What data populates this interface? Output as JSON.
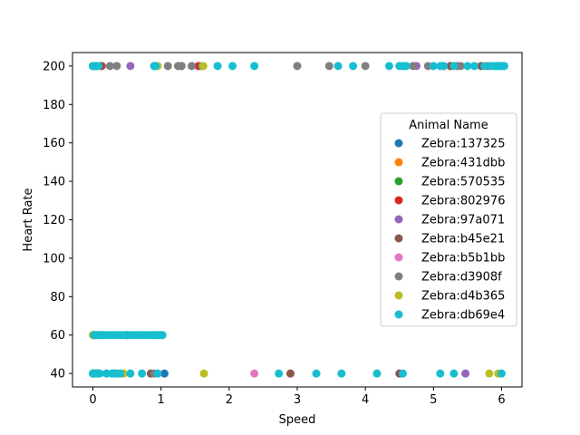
{
  "chart_data": {
    "type": "scatter",
    "xlabel": "Speed",
    "ylabel": "Heart Rate",
    "xlim": [
      -0.3,
      6.3
    ],
    "ylim": [
      33,
      207
    ],
    "xticks": [
      0,
      1,
      2,
      3,
      4,
      5,
      6
    ],
    "yticks": [
      40,
      60,
      80,
      100,
      120,
      140,
      160,
      180,
      200
    ],
    "grid": false,
    "legend": {
      "title": "Animal Name",
      "placement": "right"
    },
    "series": [
      {
        "name": "Zebra:137325",
        "color": "#1f77b4",
        "points": [
          [
            0.0,
            200
          ],
          [
            0.05,
            200
          ],
          [
            0.0,
            60
          ],
          [
            0.05,
            60
          ],
          [
            0.0,
            40
          ],
          [
            1.05,
            40
          ],
          [
            0.05,
            40
          ]
        ]
      },
      {
        "name": "Zebra:431dbb",
        "color": "#ff7f0e",
        "points": [
          [
            0.0,
            200
          ],
          [
            0.02,
            60
          ],
          [
            0.02,
            40
          ]
        ]
      },
      {
        "name": "Zebra:570535",
        "color": "#2ca02c",
        "points": [
          [
            0.0,
            200
          ],
          [
            0.01,
            60
          ],
          [
            0.01,
            40
          ]
        ]
      },
      {
        "name": "Zebra:802976",
        "color": "#d62728",
        "points": [
          [
            0.13,
            200
          ],
          [
            1.55,
            200
          ],
          [
            0.1,
            60
          ],
          [
            0.08,
            40
          ]
        ]
      },
      {
        "name": "Zebra:97a071",
        "color": "#9467bd",
        "points": [
          [
            0.55,
            200
          ],
          [
            4.75,
            200
          ],
          [
            5.25,
            200
          ],
          [
            5.47,
            40
          ],
          [
            0.3,
            40
          ]
        ]
      },
      {
        "name": "Zebra:b45e21",
        "color": "#8c564b",
        "points": [
          [
            0.12,
            200
          ],
          [
            1.3,
            200
          ],
          [
            5.15,
            200
          ],
          [
            5.25,
            200
          ],
          [
            5.7,
            200
          ],
          [
            2.9,
            40
          ],
          [
            0.85,
            40
          ],
          [
            4.5,
            40
          ],
          [
            0.5,
            60
          ]
        ]
      },
      {
        "name": "Zebra:b5b1bb",
        "color": "#e377c2",
        "points": [
          [
            2.37,
            40
          ],
          [
            0.02,
            200
          ],
          [
            0.03,
            60
          ]
        ]
      },
      {
        "name": "Zebra:d3908f",
        "color": "#7f7f7f",
        "points": [
          [
            0.25,
            200
          ],
          [
            0.35,
            200
          ],
          [
            0.9,
            200
          ],
          [
            1.1,
            200
          ],
          [
            1.25,
            200
          ],
          [
            1.3,
            200
          ],
          [
            1.45,
            200
          ],
          [
            1.6,
            200
          ],
          [
            3.0,
            200
          ],
          [
            3.47,
            200
          ],
          [
            4.0,
            200
          ],
          [
            4.7,
            200
          ],
          [
            4.92,
            200
          ],
          [
            5.35,
            200
          ],
          [
            5.4,
            200
          ],
          [
            5.8,
            200
          ],
          [
            0.9,
            40
          ],
          [
            0.2,
            40
          ]
        ]
      },
      {
        "name": "Zebra:d4b365",
        "color": "#bcbd22",
        "points": [
          [
            0.0,
            200
          ],
          [
            0.95,
            200
          ],
          [
            1.62,
            200
          ],
          [
            0.0,
            60
          ],
          [
            0.02,
            60
          ],
          [
            0.05,
            60
          ],
          [
            0.1,
            60
          ],
          [
            0.5,
            60
          ],
          [
            0.9,
            60
          ],
          [
            0.45,
            40
          ],
          [
            1.63,
            40
          ],
          [
            5.82,
            40
          ],
          [
            5.95,
            40
          ],
          [
            0.0,
            40
          ]
        ]
      },
      {
        "name": "Zebra:db69e4",
        "color": "#17becf",
        "points": [
          [
            0.0,
            200
          ],
          [
            0.02,
            200
          ],
          [
            0.04,
            200
          ],
          [
            0.06,
            200
          ],
          [
            0.08,
            200
          ],
          [
            0.9,
            200
          ],
          [
            0.92,
            200
          ],
          [
            1.83,
            200
          ],
          [
            2.05,
            200
          ],
          [
            2.37,
            200
          ],
          [
            3.6,
            200
          ],
          [
            3.82,
            200
          ],
          [
            4.35,
            200
          ],
          [
            4.5,
            200
          ],
          [
            4.55,
            200
          ],
          [
            4.58,
            200
          ],
          [
            4.6,
            200
          ],
          [
            5.0,
            200
          ],
          [
            5.1,
            200
          ],
          [
            5.15,
            200
          ],
          [
            5.3,
            200
          ],
          [
            5.5,
            200
          ],
          [
            5.6,
            200
          ],
          [
            5.75,
            200
          ],
          [
            5.85,
            200
          ],
          [
            5.9,
            200
          ],
          [
            5.92,
            200
          ],
          [
            5.95,
            200
          ],
          [
            5.97,
            200
          ],
          [
            6.0,
            200
          ],
          [
            6.02,
            200
          ],
          [
            6.04,
            200
          ],
          [
            0.02,
            60
          ],
          [
            0.05,
            60
          ],
          [
            0.08,
            60
          ],
          [
            0.12,
            60
          ],
          [
            0.15,
            60
          ],
          [
            0.2,
            60
          ],
          [
            0.25,
            60
          ],
          [
            0.3,
            60
          ],
          [
            0.35,
            60
          ],
          [
            0.4,
            60
          ],
          [
            0.45,
            60
          ],
          [
            0.5,
            60
          ],
          [
            0.55,
            60
          ],
          [
            0.6,
            60
          ],
          [
            0.65,
            60
          ],
          [
            0.7,
            60
          ],
          [
            0.75,
            60
          ],
          [
            0.8,
            60
          ],
          [
            0.85,
            60
          ],
          [
            0.88,
            60
          ],
          [
            0.9,
            60
          ],
          [
            0.92,
            60
          ],
          [
            0.95,
            60
          ],
          [
            0.97,
            60
          ],
          [
            1.0,
            60
          ],
          [
            1.02,
            60
          ],
          [
            0.0,
            40
          ],
          [
            0.02,
            40
          ],
          [
            0.04,
            40
          ],
          [
            0.06,
            40
          ],
          [
            0.08,
            40
          ],
          [
            0.1,
            40
          ],
          [
            0.2,
            40
          ],
          [
            0.28,
            40
          ],
          [
            0.32,
            40
          ],
          [
            0.36,
            40
          ],
          [
            0.4,
            40
          ],
          [
            0.55,
            40
          ],
          [
            0.72,
            40
          ],
          [
            0.95,
            40
          ],
          [
            2.73,
            40
          ],
          [
            3.28,
            40
          ],
          [
            3.65,
            40
          ],
          [
            4.17,
            40
          ],
          [
            4.55,
            40
          ],
          [
            5.1,
            40
          ],
          [
            5.3,
            40
          ],
          [
            6.0,
            40
          ]
        ]
      }
    ]
  }
}
